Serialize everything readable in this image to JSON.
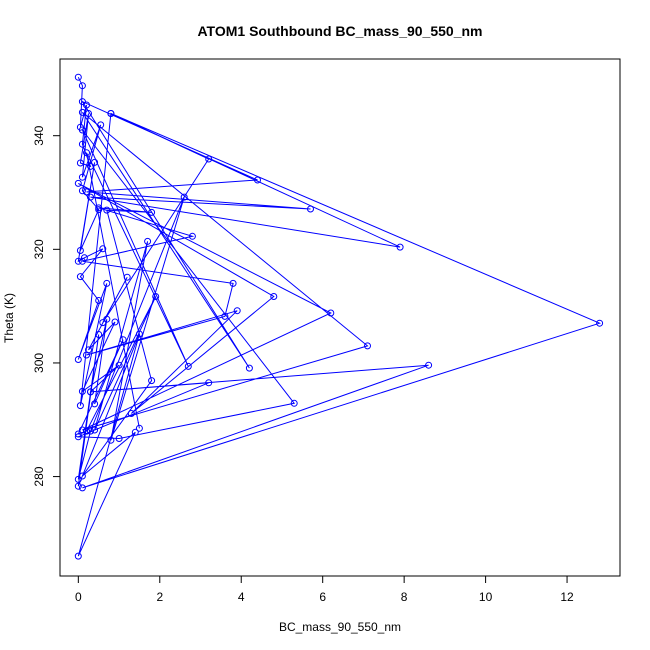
{
  "chart_data": {
    "type": "line",
    "title": "ATOM1 Southbound BC_mass_90_550_nm",
    "xlabel": "BC_mass_90_550_nm",
    "ylabel": "Theta (K)",
    "xlim": [
      -0.45,
      13.3
    ],
    "ylim": [
      262.5,
      353.5
    ],
    "x_ticks": [
      0,
      2,
      4,
      6,
      8,
      10,
      12
    ],
    "y_ticks": [
      280,
      300,
      320,
      340
    ],
    "grid": false,
    "legend": "none",
    "marker": "open-circle",
    "line_color": "#0000ff",
    "series": [
      {
        "points": [
          [
            0.0,
            350.3
          ],
          [
            0.1,
            348.8
          ],
          [
            0.05,
            341.5
          ],
          [
            0.2,
            345.4
          ],
          [
            0.1,
            338.5
          ],
          [
            0.3,
            334.6
          ],
          [
            0.05,
            335.2
          ],
          [
            0.25,
            343.9
          ],
          [
            0.1,
            332.7
          ],
          [
            0.55,
            341.9
          ],
          [
            0.1,
            330.3
          ],
          [
            0.5,
            327.0
          ],
          [
            0.05,
            319.8
          ],
          [
            0.4,
            335.3
          ],
          [
            0.0,
            317.9
          ],
          [
            0.15,
            318.5
          ],
          [
            0.6,
            320.1
          ],
          [
            0.05,
            315.2
          ],
          [
            0.5,
            311.0
          ],
          [
            0.0,
            300.6
          ],
          [
            0.7,
            314.0
          ],
          [
            0.05,
            292.5
          ],
          [
            0.8,
            343.9
          ],
          [
            3.2,
            335.9
          ],
          [
            0.6,
            307.1
          ],
          [
            1.2,
            315.1
          ],
          [
            0.25,
            302.3
          ],
          [
            0.9,
            307.2
          ],
          [
            0.1,
            295.0
          ],
          [
            1.0,
            299.6
          ],
          [
            0.3,
            294.9
          ],
          [
            0.7,
            307.7
          ],
          [
            0.4,
            292.8
          ],
          [
            1.1,
            304.1
          ],
          [
            0.0,
            287.5
          ],
          [
            0.2,
            288.0
          ],
          [
            1.9,
            311.7
          ],
          [
            0.4,
            288.2
          ],
          [
            1.7,
            321.4
          ],
          [
            0.8,
            286.4
          ],
          [
            2.6,
            329.2
          ],
          [
            0.3,
            288.0
          ],
          [
            0.0,
            279.5
          ],
          [
            0.5,
            305.0
          ],
          [
            0.0,
            278.3
          ],
          [
            1.5,
            305.1
          ],
          [
            0.0,
            266.0
          ],
          [
            1.4,
            287.8
          ],
          [
            0.1,
            280.1
          ],
          [
            1.8,
            296.9
          ],
          [
            0.7,
            326.9
          ],
          [
            1.8,
            326.5
          ],
          [
            0.5,
            327.3
          ],
          [
            2.8,
            322.3
          ],
          [
            0.1,
            317.9
          ],
          [
            3.8,
            314.0
          ],
          [
            3.6,
            308.2
          ],
          [
            0.2,
            301.4
          ],
          [
            3.9,
            309.2
          ],
          [
            1.3,
            291.1
          ],
          [
            4.8,
            311.7
          ],
          [
            0.0,
            331.6
          ],
          [
            6.2,
            308.8
          ],
          [
            0.1,
            288.2
          ],
          [
            7.1,
            303.0
          ],
          [
            0.1,
            344.1
          ],
          [
            4.2,
            299.1
          ],
          [
            0.1,
            346.0
          ],
          [
            4.4,
            332.2
          ],
          [
            0.2,
            330.1
          ],
          [
            5.7,
            327.1
          ],
          [
            0.3,
            329.2
          ],
          [
            7.9,
            320.4
          ],
          [
            0.8,
            343.9
          ],
          [
            12.8,
            307.0
          ],
          [
            0.1,
            278.0
          ],
          [
            8.6,
            299.6
          ],
          [
            0.3,
            294.9
          ],
          [
            3.2,
            296.5
          ],
          [
            0.0,
            287.0
          ],
          [
            1.0,
            286.7
          ],
          [
            5.3,
            292.9
          ],
          [
            0.1,
            341.0
          ],
          [
            2.7,
            299.4
          ],
          [
            0.2,
            337.0
          ],
          [
            1.5,
            288.5
          ]
        ]
      }
    ]
  }
}
